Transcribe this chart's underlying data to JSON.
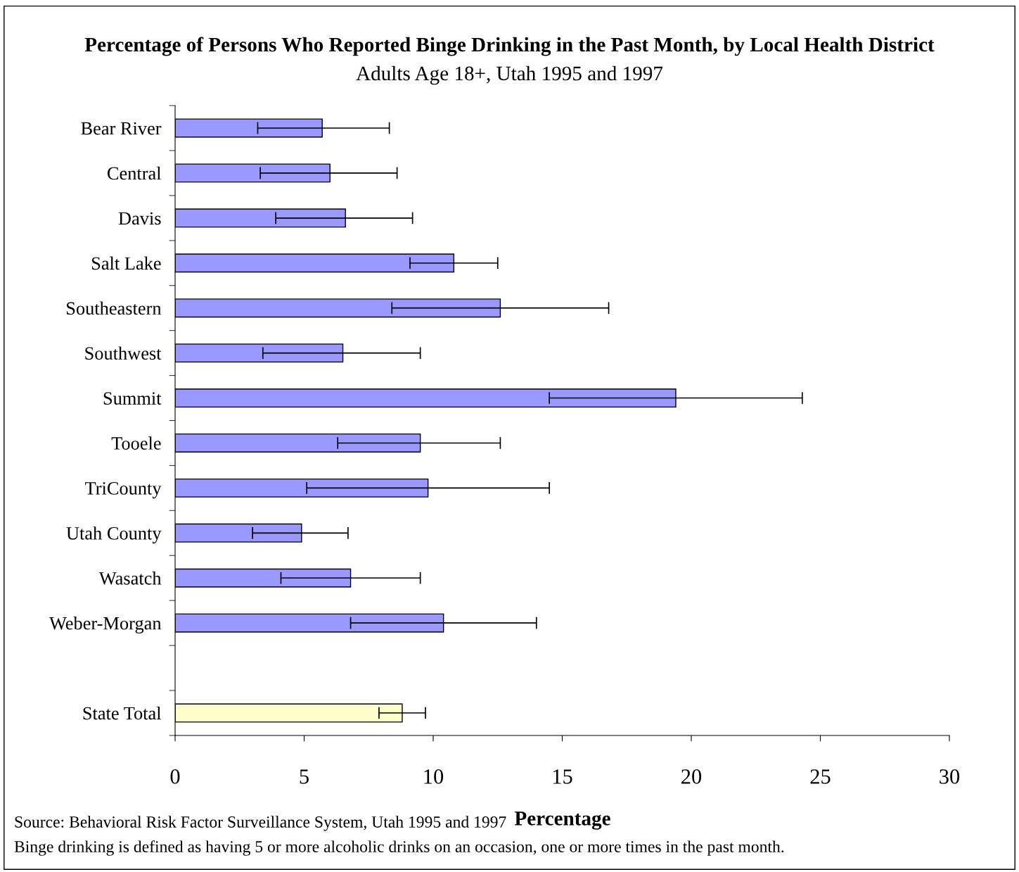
{
  "chart_data": {
    "type": "bar",
    "orientation": "horizontal",
    "title": "Percentage of Persons Who Reported Binge Drinking in the Past Month, by Local Health District",
    "subtitle": "Adults Age 18+, Utah 1995 and 1997",
    "xlabel": "Percentage",
    "categories": [
      "Bear River",
      "Central",
      "Davis",
      "Salt Lake",
      "Southeastern",
      "Southwest",
      "Summit",
      "Tooele",
      "TriCounty",
      "Utah County",
      "Wasatch",
      "Weber-Morgan",
      null,
      "State Total"
    ],
    "values": [
      5.7,
      6.0,
      6.6,
      10.8,
      12.6,
      6.5,
      19.4,
      9.5,
      9.8,
      4.9,
      6.8,
      10.4,
      null,
      8.8
    ],
    "errors": [
      [
        3.2,
        8.3
      ],
      [
        3.3,
        8.6
      ],
      [
        3.9,
        9.2
      ],
      [
        9.1,
        12.5
      ],
      [
        8.4,
        16.8
      ],
      [
        3.4,
        9.5
      ],
      [
        14.5,
        24.3
      ],
      [
        6.3,
        12.6
      ],
      [
        5.1,
        14.5
      ],
      [
        3.0,
        6.7
      ],
      [
        4.1,
        9.5
      ],
      [
        6.8,
        14.0
      ],
      null,
      [
        7.9,
        9.7
      ]
    ],
    "colors": [
      "#9999ff",
      "#9999ff",
      "#9999ff",
      "#9999ff",
      "#9999ff",
      "#9999ff",
      "#9999ff",
      "#9999ff",
      "#9999ff",
      "#9999ff",
      "#9999ff",
      "#9999ff",
      "#9999ff",
      "#ffffcc"
    ],
    "xlim": [
      0,
      30
    ],
    "xticks": [
      0,
      5,
      10,
      15,
      20,
      25,
      30
    ],
    "grid": false,
    "legend": false,
    "annotations": [
      "Source: Behavioral Risk Factor Surveillance System, Utah 1995 and 1997",
      "Binge drinking is defined as having 5 or more alcoholic drinks on an occasion, one or more times in the past month."
    ]
  }
}
